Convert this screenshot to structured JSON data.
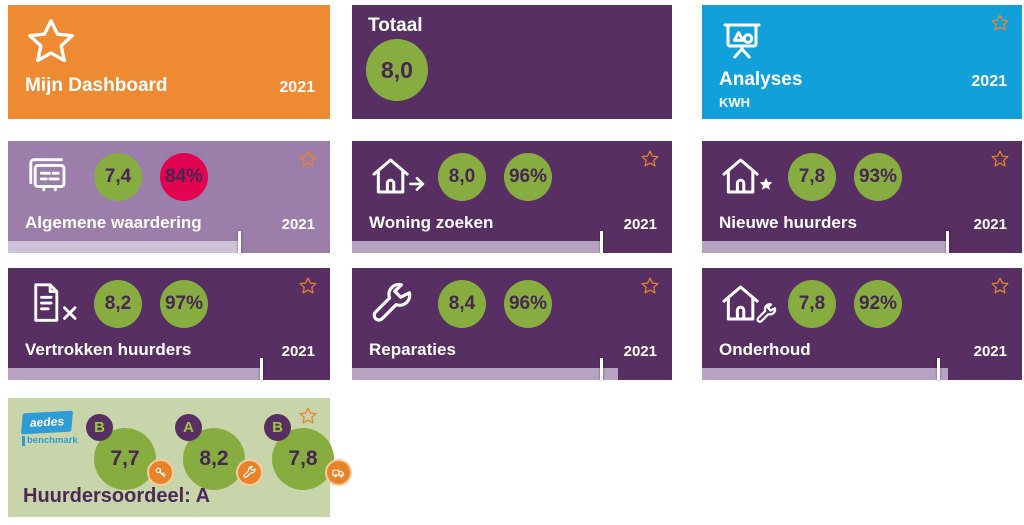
{
  "colors": {
    "orange_tile": "#EE8A31",
    "purple_tile": "#572F62",
    "light_purple_tile": "#9B7EA9",
    "blue_tile": "#12A0DB",
    "light_green_tile": "#C8D4AA",
    "score_circle_green": "#87AD41",
    "percent_circle_pink": "#E1034F",
    "circle_text": "#472752",
    "bar_fill_lavender": "#B7A2C2",
    "favorite_star_orange": "#E8832A",
    "aedes_logo_blue": "#2F9CD8"
  },
  "icons": {
    "mijn_dashboard": "star-outline-icon",
    "analyses": "presentation-board-icon",
    "algemene_waardering": "survey-cards-icon",
    "woning_zoeken": "house-arrow-icon",
    "nieuwe_huurders": "house-star-icon",
    "vertrokken_huurders": "document-x-icon",
    "reparaties": "wrench-icon",
    "onderhoud": "house-wrench-icon",
    "favorite": "star-outline-icon"
  },
  "tiles": {
    "mijn_dashboard": {
      "title": "Mijn Dashboard",
      "year": "2021"
    },
    "totaal": {
      "title": "Totaal",
      "score": "8,0"
    },
    "analyses": {
      "title": "Analyses",
      "subtitle": "KWH",
      "year": "2021"
    },
    "algemene_waardering": {
      "title": "Algemene waardering",
      "year": "2021",
      "score": "7,4",
      "percent": "84%",
      "bar": {
        "fill_pct": 72,
        "marker_pct": 72
      }
    },
    "woning_zoeken": {
      "title": "Woning zoeken",
      "year": "2021",
      "score": "8,0",
      "percent": "96%",
      "bar": {
        "fill_pct": 78,
        "marker_pct": 78
      }
    },
    "nieuwe_huurders": {
      "title": "Nieuwe huurders",
      "year": "2021",
      "score": "7,8",
      "percent": "93%",
      "bar": {
        "fill_pct": 77,
        "marker_pct": 77
      }
    },
    "vertrokken_huurders": {
      "title": "Vertrokken huurders",
      "year": "2021",
      "score": "8,2",
      "percent": "97%",
      "bar": {
        "fill_pct": 79,
        "marker_pct": 79
      }
    },
    "reparaties": {
      "title": "Reparaties",
      "year": "2021",
      "score": "8,4",
      "percent": "96%",
      "bar": {
        "fill_pct": 83,
        "marker_pct": 78
      }
    },
    "onderhoud": {
      "title": "Onderhoud",
      "year": "2021",
      "score": "7,8",
      "percent": "92%",
      "bar": {
        "fill_pct": 77,
        "marker_pct": 74
      }
    },
    "huurdersoordeel": {
      "title": "Huurdersoordeel: A",
      "logo": {
        "line1": "aedes",
        "line2": "benchmark"
      },
      "items": [
        {
          "letter": "B",
          "score": "7,7"
        },
        {
          "letter": "A",
          "score": "8,2"
        },
        {
          "letter": "B",
          "score": "7,8"
        }
      ]
    }
  }
}
